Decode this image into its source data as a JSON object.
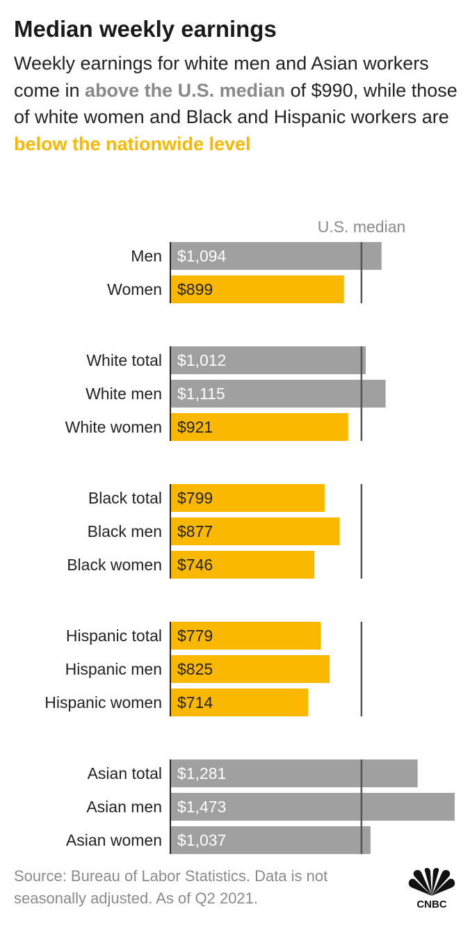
{
  "title": "Median weekly earnings",
  "subtitle": {
    "part1": "Weekly earnings for white men and Asian workers come in ",
    "highlight_above": "above the U.S. median",
    "part2": " of $990, while those of white women and Black and Hispanic workers are ",
    "highlight_below": "below the nationwide level"
  },
  "colors": {
    "above": "#a0a0a0",
    "below": "#fbb800",
    "median_line": "#555555",
    "label_above": "#ffffff",
    "label_below": "#222222"
  },
  "chart_data": {
    "type": "bar",
    "orientation": "horizontal",
    "reference": {
      "label": "U.S. median",
      "value": 990
    },
    "groups": [
      {
        "categories": [
          "Men",
          "Women"
        ],
        "values": [
          1094,
          899
        ],
        "labels": [
          "$1,094",
          "$899"
        ]
      },
      {
        "categories": [
          "White total",
          "White men",
          "White women"
        ],
        "values": [
          1012,
          1115,
          921
        ],
        "labels": [
          "$1,012",
          "$1,115",
          "$921"
        ]
      },
      {
        "categories": [
          "Black total",
          "Black men",
          "Black women"
        ],
        "values": [
          799,
          877,
          746
        ],
        "labels": [
          "$799",
          "$877",
          "$746"
        ]
      },
      {
        "categories": [
          "Hispanic total",
          "Hispanic men",
          "Hispanic women"
        ],
        "values": [
          779,
          825,
          714
        ],
        "labels": [
          "$779",
          "$825",
          "$714"
        ]
      },
      {
        "categories": [
          "Asian total",
          "Asian men",
          "Asian women"
        ],
        "values": [
          1281,
          1473,
          1037
        ],
        "labels": [
          "$1,281",
          "$1,473",
          "$1,037"
        ]
      }
    ],
    "xlim": [
      0,
      1473
    ]
  },
  "footer": "Source: Bureau of Labor Statistics. Data is not seasonally adjusted. As of Q2 2021.",
  "logo": {
    "icon": "cnbc-peacock-icon",
    "text": "CNBC"
  }
}
